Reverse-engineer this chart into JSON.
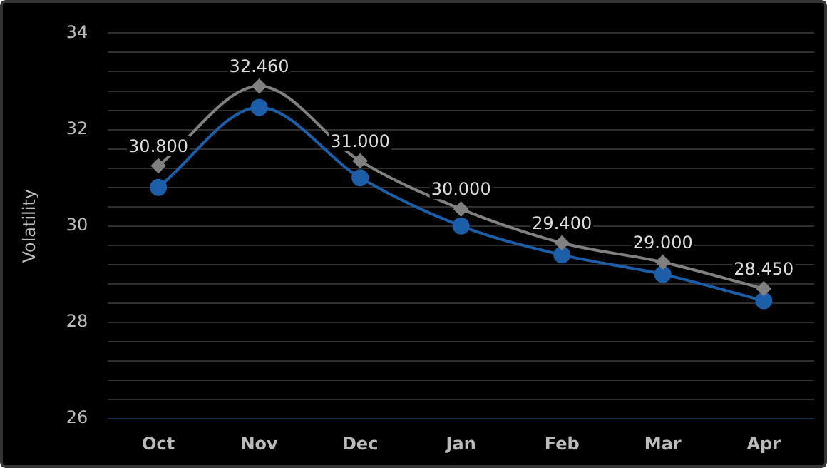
{
  "chart_data": {
    "type": "line",
    "ylabel": "Volatility",
    "categories": [
      "Oct",
      "Nov",
      "Dec",
      "Jan",
      "Feb",
      "Mar",
      "Apr"
    ],
    "series": [
      {
        "color": "#808080",
        "marker": "diamond",
        "values": [
          31.25,
          32.9,
          31.35,
          30.35,
          29.65,
          29.25,
          28.7
        ]
      },
      {
        "color": "#1c5ea8",
        "marker": "circle",
        "values": [
          30.8,
          32.46,
          31.0,
          30.0,
          29.4,
          29.0,
          28.45
        ],
        "value_labels": [
          "30.800",
          "32.460",
          "31.000",
          "30.000",
          "29.400",
          "29.000",
          "28.450"
        ]
      }
    ],
    "ylim": [
      26,
      34
    ],
    "yticks": [
      26,
      {
        "value": 26.4,
        "label": null
      },
      {
        "value": 26.8,
        "label": null
      },
      {
        "value": 27.2,
        "label": null
      },
      {
        "value": 27.6,
        "label": null
      },
      28,
      {
        "value": 28.4,
        "label": null
      },
      {
        "value": 28.8,
        "label": null
      },
      {
        "value": 29.2,
        "label": null
      },
      {
        "value": 29.6,
        "label": null
      },
      30,
      {
        "value": 30.4,
        "label": null
      },
      {
        "value": 30.8,
        "label": null
      },
      {
        "value": 31.2,
        "label": null
      },
      {
        "value": 31.6,
        "label": null
      },
      32,
      {
        "value": 32.4,
        "label": null
      },
      {
        "value": 32.8,
        "label": null
      },
      {
        "value": 33.2,
        "label": null
      },
      {
        "value": 33.6,
        "label": null
      },
      34
    ],
    "grid": "y",
    "legend": false,
    "line_style": "solid"
  }
}
